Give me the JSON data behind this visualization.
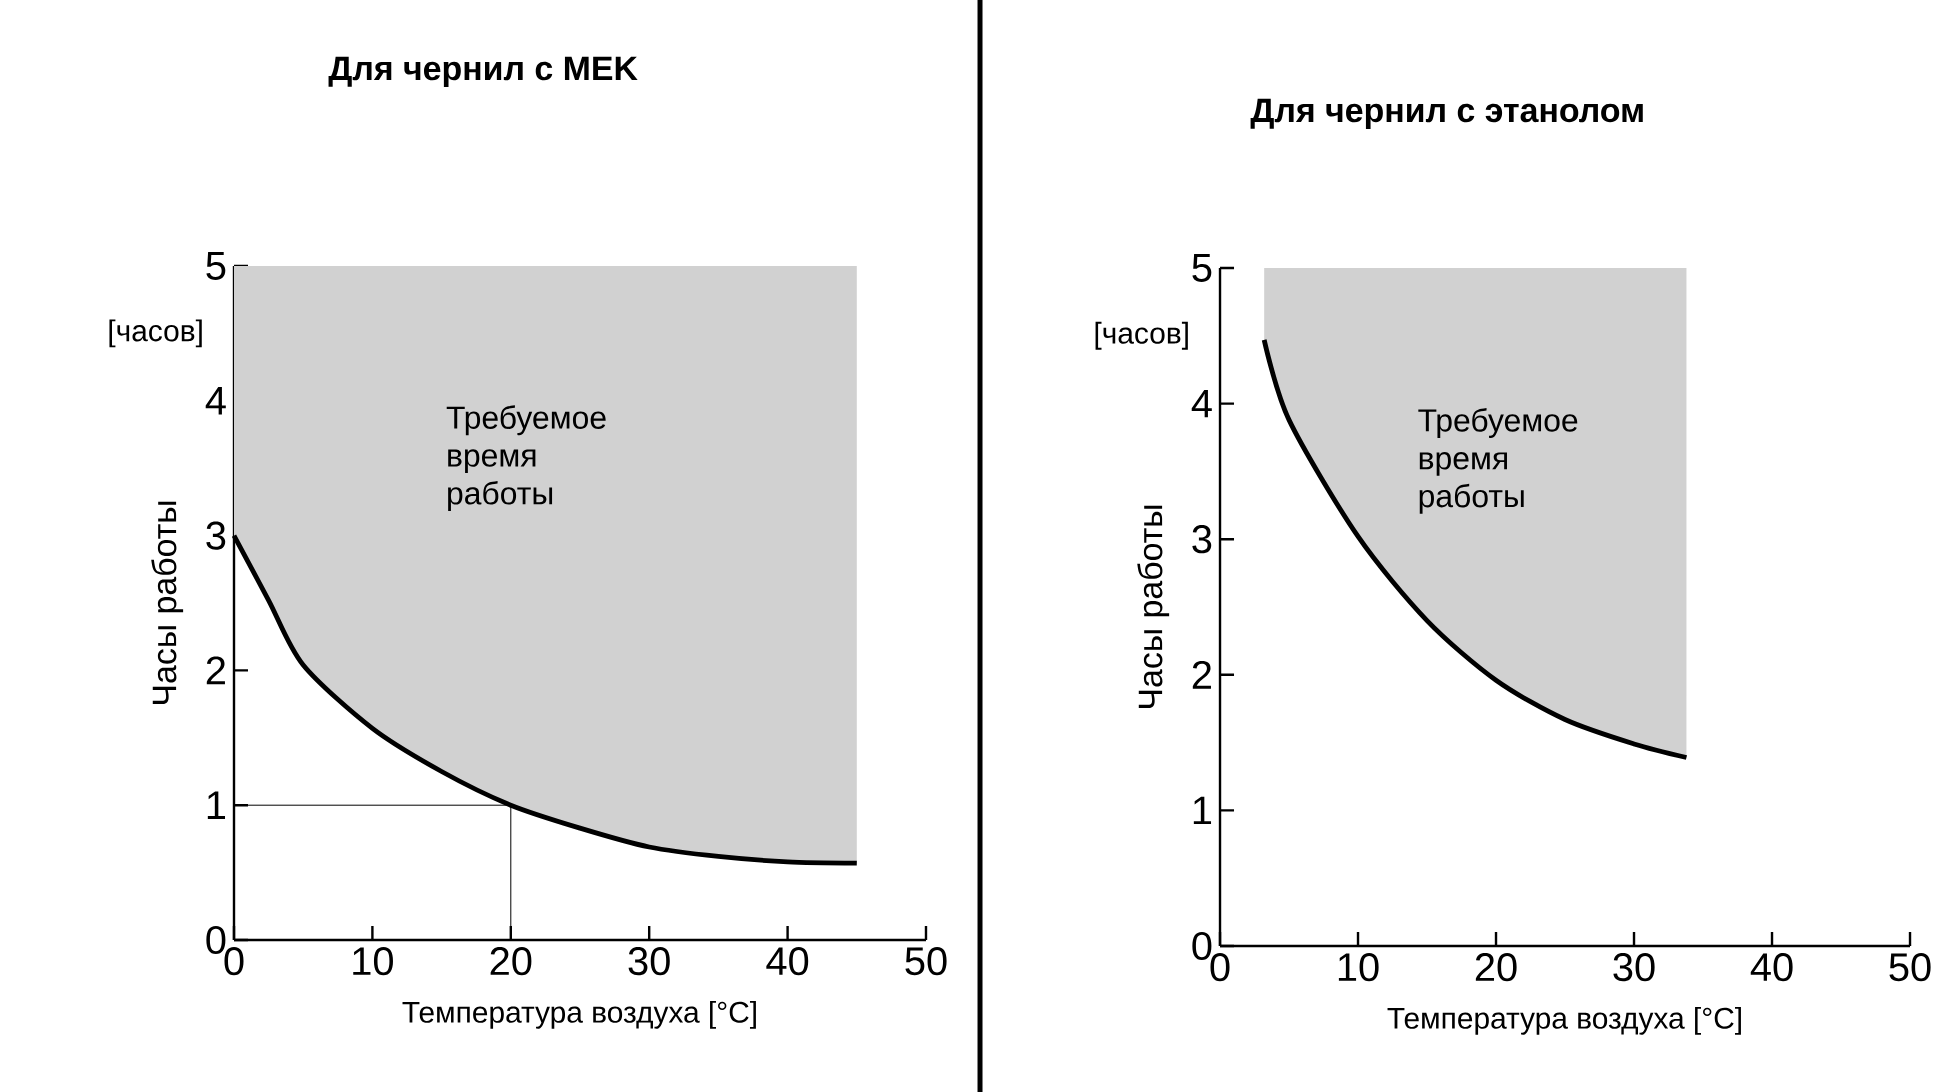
{
  "chart_data": [
    {
      "type": "line",
      "title": "Для чернил с MEK",
      "xlabel": "Температура воздуха [°C]",
      "ylabel": "Часы работы",
      "annotations": [
        "[часов]",
        "Требуемое время работы"
      ],
      "xlim": [
        0,
        50
      ],
      "ylim": [
        0,
        5
      ],
      "xticks": [
        0,
        10,
        20,
        30,
        40,
        50
      ],
      "yticks": [
        0,
        1,
        2,
        3,
        4,
        5
      ],
      "series": [
        {
          "color": "#000000",
          "x": [
            0,
            2.5,
            5,
            10,
            15,
            20,
            25,
            30,
            35,
            40,
            45
          ],
          "values": [
            3,
            2.52,
            2.04,
            1.57,
            1.25,
            1.0,
            0.83,
            0.69,
            0.62,
            0.58,
            0.57
          ],
          "lower": [
            3,
            2.52,
            2.04,
            1.57,
            1.25,
            1.0,
            0.83,
            0.69,
            0.62,
            0.58,
            0.57
          ],
          "upper": [
            5,
            5,
            5,
            5,
            5,
            5,
            5,
            5,
            5,
            5,
            5
          ]
        }
      ],
      "ref_lines": [
        {
          "axis": "x",
          "value": 20
        },
        {
          "axis": "y",
          "value": 1
        }
      ]
    },
    {
      "type": "line",
      "title": "Для чернил с этанолом",
      "xlabel": "Температура воздуха [°C]",
      "ylabel": "Часы работы",
      "annotations": [
        "[часов]",
        "Требуемое время работы"
      ],
      "xlim": [
        0,
        50
      ],
      "ylim": [
        0,
        5
      ],
      "xticks": [
        0,
        10,
        20,
        30,
        40,
        50
      ],
      "yticks": [
        0,
        1,
        2,
        3,
        4,
        5
      ],
      "series": [
        {
          "color": "#000000",
          "x": [
            3.2,
            5,
            10,
            15,
            20,
            25,
            30,
            33.8
          ],
          "values": [
            4.47,
            3.88,
            3.02,
            2.4,
            1.96,
            1.67,
            1.49,
            1.39
          ],
          "lower": [
            4.47,
            3.88,
            3.02,
            2.4,
            1.96,
            1.67,
            1.49,
            1.39
          ],
          "upper": [
            5,
            5,
            5,
            5,
            5,
            5,
            5,
            5
          ]
        }
      ]
    }
  ]
}
